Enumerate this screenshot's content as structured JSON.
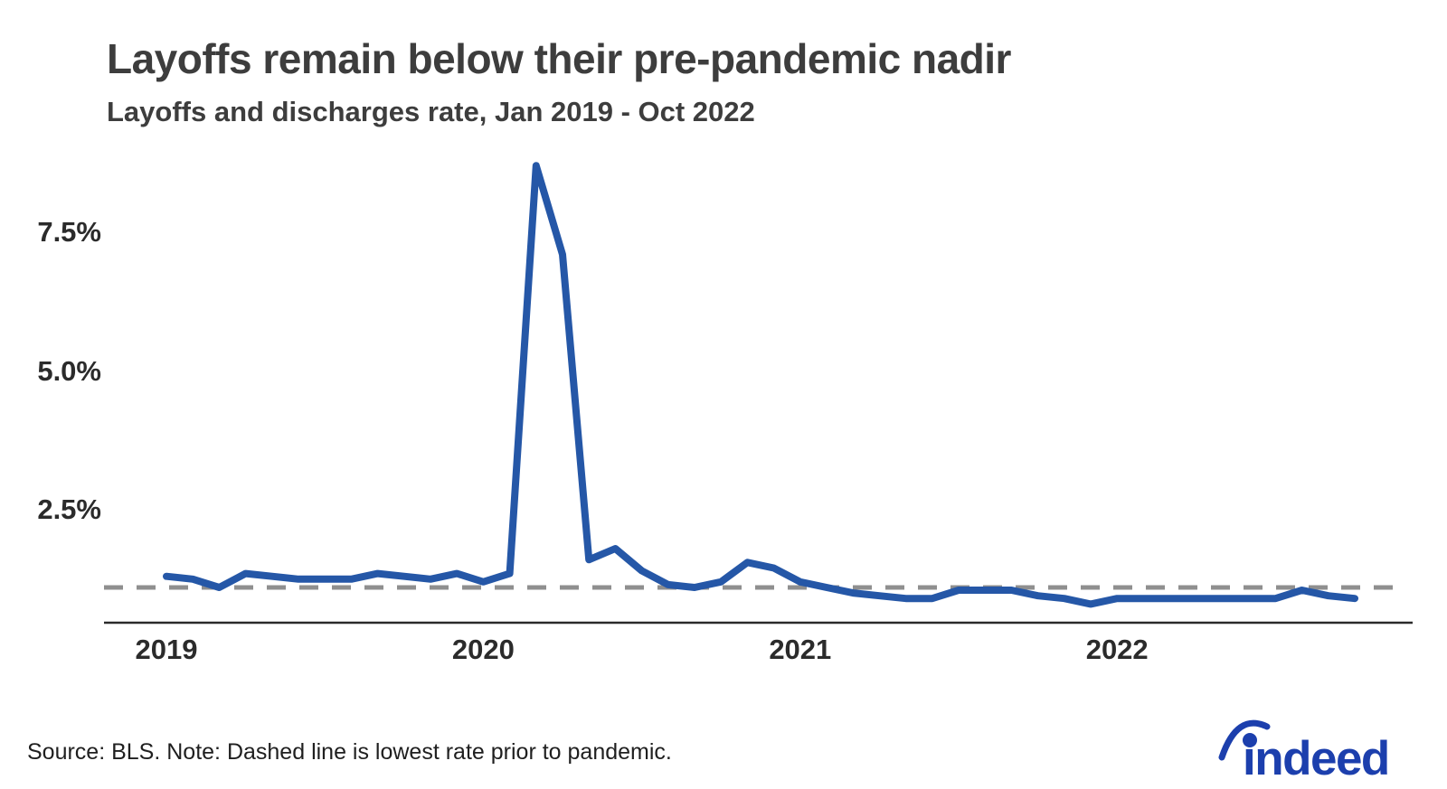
{
  "chart_data": {
    "type": "line",
    "title": "Layoffs remain below their pre-pandemic nadir",
    "subtitle": "Layoffs and discharges rate, Jan 2019 - Oct 2022",
    "unit": "%",
    "grid": "off",
    "legend": "none",
    "ylim": [
      0.45,
      8.85
    ],
    "y_tick_labels": [
      "7.5%",
      "5.0%",
      "2.5%"
    ],
    "y_tick_values": [
      7.5,
      5.0,
      2.5
    ],
    "x_tick_labels": [
      "2019",
      "2020",
      "2021",
      "2022"
    ],
    "x": [
      "2019-01",
      "2019-02",
      "2019-03",
      "2019-04",
      "2019-05",
      "2019-06",
      "2019-07",
      "2019-08",
      "2019-09",
      "2019-10",
      "2019-11",
      "2019-12",
      "2020-01",
      "2020-02",
      "2020-03",
      "2020-04",
      "2020-05",
      "2020-06",
      "2020-07",
      "2020-08",
      "2020-09",
      "2020-10",
      "2020-11",
      "2020-12",
      "2021-01",
      "2021-02",
      "2021-03",
      "2021-04",
      "2021-05",
      "2021-06",
      "2021-07",
      "2021-08",
      "2021-09",
      "2021-10",
      "2021-11",
      "2021-12",
      "2022-01",
      "2022-02",
      "2022-03",
      "2022-04",
      "2022-05",
      "2022-06",
      "2022-07",
      "2022-08",
      "2022-09",
      "2022-10"
    ],
    "series": [
      {
        "name": "Layoffs and discharges rate",
        "color": "#2557a7",
        "values": [
          1.3,
          1.25,
          1.1,
          1.35,
          1.3,
          1.25,
          1.25,
          1.25,
          1.35,
          1.3,
          1.25,
          1.35,
          1.2,
          1.35,
          8.7,
          7.1,
          1.6,
          1.8,
          1.4,
          1.15,
          1.1,
          1.2,
          1.55,
          1.45,
          1.2,
          1.1,
          1.0,
          0.95,
          0.9,
          0.9,
          1.05,
          1.05,
          1.05,
          0.95,
          0.9,
          0.8,
          0.9,
          0.9,
          0.9,
          0.9,
          0.9,
          0.9,
          0.9,
          1.05,
          0.95,
          0.9
        ]
      }
    ],
    "reference_line": {
      "value": 1.1,
      "style": "dashed",
      "color": "#8f8f8f",
      "meaning": "lowest rate prior to pandemic"
    }
  },
  "footer": {
    "source_note": "Source: BLS. Note: Dashed line is lowest rate prior to pandemic."
  },
  "branding": {
    "logo_text": "indeed",
    "logo_color": "#1c3fad"
  }
}
